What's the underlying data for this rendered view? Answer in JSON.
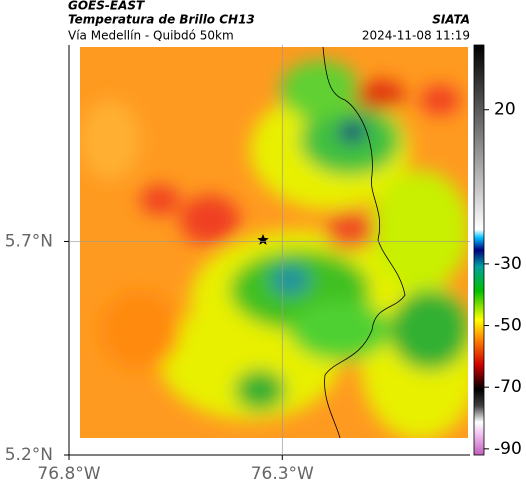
{
  "header": {
    "satellite": "GOES-EAST",
    "product": "Temperatura de Brillo CH13",
    "brand": "SIATA",
    "region": "Vía Medellín - Quibdó 50km",
    "timestamp": "2024-11-08 11:19"
  },
  "map": {
    "xlim": [
      -76.8,
      -75.86
    ],
    "ylim": [
      5.2,
      6.16
    ],
    "xticks": [
      {
        "value": -76.8,
        "label": "76.8°W"
      },
      {
        "value": -76.3,
        "label": "76.3°W"
      }
    ],
    "yticks": [
      {
        "value": 5.2,
        "label": "5.2°N"
      },
      {
        "value": 5.7,
        "label": "5.7°N"
      }
    ],
    "grid": true
  },
  "colorbar": {
    "lim": [
      -92,
      41
    ],
    "ticks": [
      20,
      -30,
      -50,
      -70,
      -90
    ]
  }
}
